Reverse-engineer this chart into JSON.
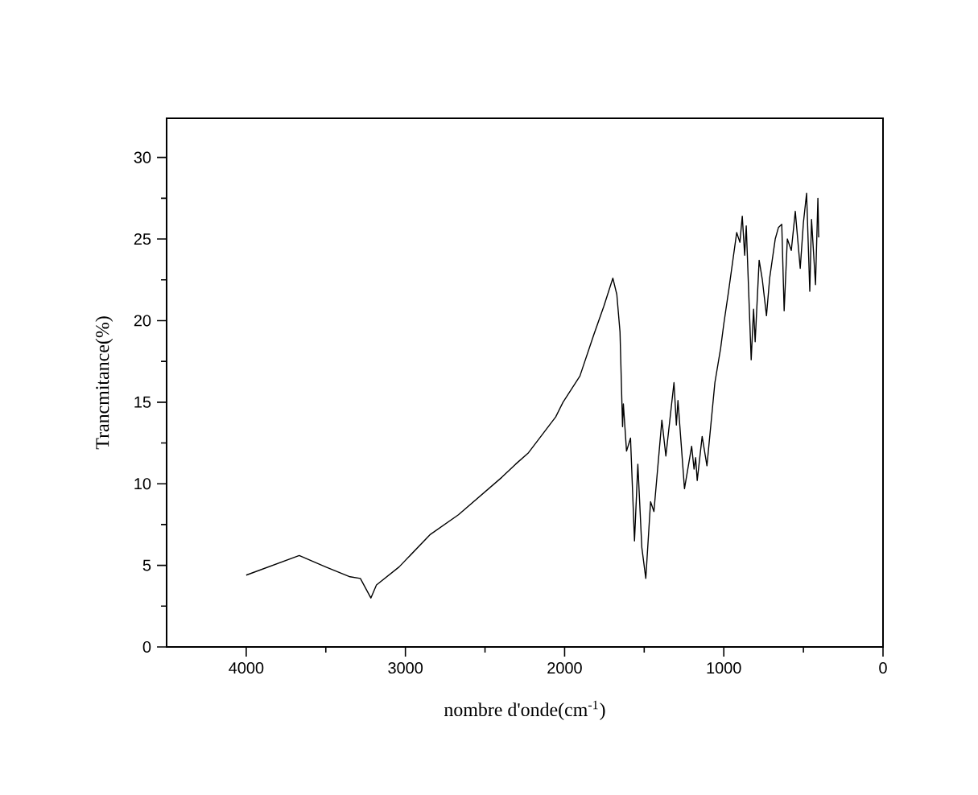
{
  "chart_data": {
    "type": "line",
    "xlabel": "nombre d'onde(cm$^{-1}$)",
    "ylabel": "Trancmitance(%)",
    "xlim": [
      4500,
      0
    ],
    "ylim": [
      0,
      32.4
    ],
    "xticks": [
      4000,
      3000,
      2000,
      1000,
      0
    ],
    "yticks": [
      0,
      5,
      10,
      15,
      20,
      25,
      30
    ],
    "series": [
      {
        "color": "#000000",
        "x": [
          4000,
          3667,
          3500,
          3348,
          3283,
          3217,
          3182,
          3040,
          2843,
          2667,
          2394,
          2308,
          2227,
          2056,
          2010,
          1904,
          1818,
          1753,
          1697,
          1672,
          1652,
          1636,
          1631,
          1611,
          1586,
          1561,
          1540,
          1515,
          1490,
          1460,
          1439,
          1389,
          1364,
          1313,
          1298,
          1288,
          1247,
          1202,
          1187,
          1177,
          1167,
          1136,
          1106,
          1056,
          1020,
          1000,
          970,
          919,
          899,
          884,
          869,
          859,
          828,
          813,
          803,
          778,
          758,
          732,
          712,
          677,
          657,
          636,
          621,
          601,
          576,
          551,
          520,
          500,
          480,
          460,
          449,
          424,
          409,
          404
        ],
        "values": [
          4.4,
          5.6,
          4.9,
          4.3,
          4.2,
          3.0,
          3.8,
          4.9,
          6.9,
          8.1,
          10.4,
          11.2,
          11.9,
          14.1,
          15.0,
          16.6,
          19.1,
          20.9,
          22.6,
          21.6,
          19.3,
          13.5,
          14.9,
          12.0,
          12.8,
          6.5,
          11.2,
          6.1,
          4.2,
          8.9,
          8.3,
          13.9,
          11.7,
          16.2,
          13.6,
          15.1,
          9.7,
          12.3,
          10.9,
          11.6,
          10.2,
          12.9,
          11.1,
          16.2,
          18.3,
          19.8,
          21.8,
          25.4,
          24.8,
          26.4,
          24.0,
          25.8,
          17.6,
          20.7,
          18.7,
          23.7,
          22.5,
          20.3,
          22.6,
          25.0,
          25.7,
          25.9,
          20.6,
          25.0,
          24.3,
          26.7,
          23.2,
          26.0,
          27.8,
          21.8,
          26.2,
          22.2,
          27.5,
          25.1
        ]
      }
    ]
  }
}
